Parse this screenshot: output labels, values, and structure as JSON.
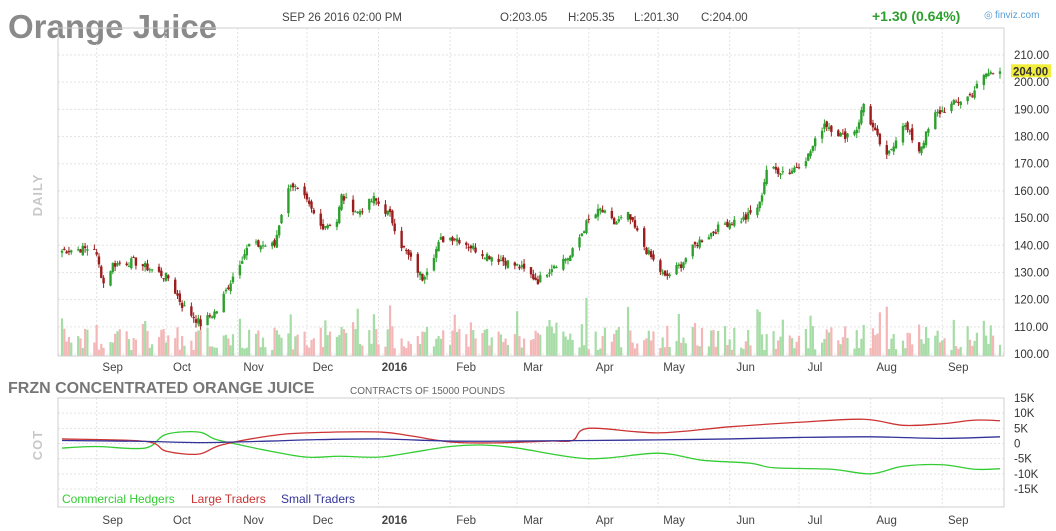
{
  "header": {
    "title": "Orange Juice",
    "datetime": "SEP 26 2016 02:00 PM",
    "open": "O:203.05",
    "high": "H:205.35",
    "low": "L:201.30",
    "close": "C:204.00",
    "change": "+1.30 (0.64%)",
    "brand": "finviz.com",
    "last_price_label": "204.00"
  },
  "colors": {
    "up": "#2ca02c",
    "down": "#9b1d1d",
    "volume_up": "#a6dca6",
    "volume_down": "#f4b6b6",
    "last_price_tag": "#f2ee3a",
    "commercial": "#33cc33",
    "large": "#cc3333",
    "small": "#333399"
  },
  "price_panel": {
    "side_label": "DAILY",
    "y_ticks": [
      "210.00",
      "200.00",
      "190.00",
      "180.00",
      "170.00",
      "160.00",
      "150.00",
      "140.00",
      "130.00",
      "120.00",
      "110.00",
      "100.00"
    ]
  },
  "cot_panel": {
    "title": "FRZN CONCENTRATED ORANGE JUICE",
    "subtitle": "CONTRACTS OF 15000 POUNDS",
    "side_label": "COT",
    "y_ticks": [
      "15K",
      "10K",
      "5K",
      "0",
      "-5K",
      "-10K",
      "-15K"
    ],
    "legend": [
      {
        "label": "Commercial Hedgers",
        "color": "#33cc33"
      },
      {
        "label": "Large Traders",
        "color": "#cc3333"
      },
      {
        "label": "Small Traders",
        "color": "#333399"
      }
    ]
  },
  "x_axis": {
    "labels": [
      {
        "text": "Sep",
        "bold": false
      },
      {
        "text": "Oct",
        "bold": false
      },
      {
        "text": "Nov",
        "bold": false
      },
      {
        "text": "Dec",
        "bold": false
      },
      {
        "text": "2016",
        "bold": true
      },
      {
        "text": "Feb",
        "bold": false
      },
      {
        "text": "Mar",
        "bold": false
      },
      {
        "text": "Apr",
        "bold": false
      },
      {
        "text": "May",
        "bold": false
      },
      {
        "text": "Jun",
        "bold": false
      },
      {
        "text": "Jul",
        "bold": false
      },
      {
        "text": "Aug",
        "bold": false
      },
      {
        "text": "Sep",
        "bold": false
      }
    ]
  },
  "chart_data": [
    {
      "type": "candlestick",
      "title": "Orange Juice",
      "period": "daily",
      "x_start": "2015-08-17",
      "x_end": "2016-09-26",
      "ylim": [
        100,
        210
      ],
      "month_starts": [
        "2015-09-01",
        "2015-10-01",
        "2015-11-01",
        "2015-12-01",
        "2016-01-01",
        "2016-02-01",
        "2016-03-01",
        "2016-04-01",
        "2016-05-01",
        "2016-06-01",
        "2016-07-01",
        "2016-08-01",
        "2016-09-01"
      ],
      "close_path": [
        [
          "2015-08-17",
          138
        ],
        [
          "2015-08-31",
          139
        ],
        [
          "2015-09-04",
          126
        ],
        [
          "2015-09-08",
          133
        ],
        [
          "2015-09-17",
          134
        ],
        [
          "2015-09-25",
          131
        ],
        [
          "2015-10-02",
          128
        ],
        [
          "2015-10-08",
          118
        ],
        [
          "2015-10-16",
          111
        ],
        [
          "2015-10-23",
          116
        ],
        [
          "2015-10-28",
          125
        ],
        [
          "2015-11-02",
          134
        ],
        [
          "2015-11-06",
          140
        ],
        [
          "2015-11-17",
          140
        ],
        [
          "2015-11-20",
          152
        ],
        [
          "2015-11-24",
          163
        ],
        [
          "2015-11-30",
          157
        ],
        [
          "2015-12-07",
          147
        ],
        [
          "2015-12-14",
          149
        ],
        [
          "2015-12-16",
          158
        ],
        [
          "2015-12-23",
          152
        ],
        [
          "2015-12-30",
          157
        ],
        [
          "2016-01-06",
          151
        ],
        [
          "2016-01-11",
          140
        ],
        [
          "2016-01-20",
          128
        ],
        [
          "2016-01-28",
          142
        ],
        [
          "2016-02-03",
          143
        ],
        [
          "2016-02-15",
          137
        ],
        [
          "2016-02-22",
          135
        ],
        [
          "2016-03-02",
          132
        ],
        [
          "2016-03-10",
          127
        ],
        [
          "2016-03-17",
          133
        ],
        [
          "2016-03-24",
          136
        ],
        [
          "2016-03-31",
          148
        ],
        [
          "2016-04-06",
          153
        ],
        [
          "2016-04-12",
          148
        ],
        [
          "2016-04-18",
          151
        ],
        [
          "2016-04-26",
          138
        ],
        [
          "2016-05-04",
          128
        ],
        [
          "2016-05-11",
          133
        ],
        [
          "2016-05-18",
          141
        ],
        [
          "2016-05-30",
          148
        ],
        [
          "2016-06-08",
          150
        ],
        [
          "2016-06-14",
          155
        ],
        [
          "2016-06-17",
          168
        ],
        [
          "2016-06-27",
          167
        ],
        [
          "2016-07-05",
          173
        ],
        [
          "2016-07-12",
          185
        ],
        [
          "2016-07-20",
          180
        ],
        [
          "2016-07-26",
          183
        ],
        [
          "2016-07-29",
          192
        ],
        [
          "2016-08-02",
          183
        ],
        [
          "2016-08-08",
          172
        ],
        [
          "2016-08-15",
          185
        ],
        [
          "2016-08-22",
          175
        ],
        [
          "2016-08-29",
          188
        ],
        [
          "2016-09-06",
          192
        ],
        [
          "2016-09-13",
          195
        ],
        [
          "2016-09-20",
          203
        ],
        [
          "2016-09-26",
          204
        ]
      ],
      "last": {
        "open": 203.05,
        "high": 205.35,
        "low": 201.3,
        "close": 204.0
      }
    },
    {
      "type": "line",
      "title": "FRZN CONCENTRATED ORANGE JUICE",
      "subtitle": "CONTRACTS OF 15000 POUNDS",
      "ylim": [
        -15000,
        15000
      ],
      "y_ticks": [
        15000,
        10000,
        5000,
        0,
        -5000,
        -10000,
        -15000
      ],
      "series": [
        {
          "name": "Commercial Hedgers",
          "color": "#33cc33",
          "points": [
            [
              "2015-08-17",
              -1500
            ],
            [
              "2015-09-01",
              -1000
            ],
            [
              "2015-09-22",
              -1500
            ],
            [
              "2015-10-01",
              3000
            ],
            [
              "2015-10-15",
              3800
            ],
            [
              "2015-10-22",
              1500
            ],
            [
              "2015-11-01",
              -300
            ],
            [
              "2015-11-15",
              -2500
            ],
            [
              "2015-12-01",
              -4500
            ],
            [
              "2015-12-15",
              -4200
            ],
            [
              "2016-01-01",
              -4500
            ],
            [
              "2016-01-15",
              -3000
            ],
            [
              "2016-02-01",
              -1000
            ],
            [
              "2016-02-15",
              -500
            ],
            [
              "2016-03-01",
              -1500
            ],
            [
              "2016-04-01",
              -5000
            ],
            [
              "2016-05-01",
              -3200
            ],
            [
              "2016-05-20",
              -5500
            ],
            [
              "2016-06-10",
              -6500
            ],
            [
              "2016-06-20",
              -8000
            ],
            [
              "2016-07-15",
              -8500
            ],
            [
              "2016-08-01",
              -10000
            ],
            [
              "2016-08-15",
              -7500
            ],
            [
              "2016-09-01",
              -7000
            ],
            [
              "2016-09-15",
              -8500
            ],
            [
              "2016-09-26",
              -8300
            ]
          ]
        },
        {
          "name": "Large Traders",
          "color": "#cc3333",
          "points": [
            [
              "2015-08-17",
              1500
            ],
            [
              "2015-09-22",
              700
            ],
            [
              "2015-10-01",
              -2500
            ],
            [
              "2015-10-15",
              -3500
            ],
            [
              "2015-10-25",
              -500
            ],
            [
              "2015-11-15",
              2500
            ],
            [
              "2015-12-01",
              3500
            ],
            [
              "2016-01-01",
              3800
            ],
            [
              "2016-01-15",
              2500
            ],
            [
              "2016-02-01",
              500
            ],
            [
              "2016-02-20",
              200
            ],
            [
              "2016-03-15",
              800
            ],
            [
              "2016-03-25",
              1000
            ],
            [
              "2016-04-01",
              5000
            ],
            [
              "2016-05-01",
              3500
            ],
            [
              "2016-06-01",
              5500
            ],
            [
              "2016-07-01",
              7000
            ],
            [
              "2016-07-29",
              8000
            ],
            [
              "2016-08-15",
              6000
            ],
            [
              "2016-09-01",
              6500
            ],
            [
              "2016-09-15",
              7700
            ],
            [
              "2016-09-26",
              7500
            ]
          ]
        },
        {
          "name": "Small Traders",
          "color": "#333399",
          "points": [
            [
              "2015-08-17",
              1000
            ],
            [
              "2015-09-22",
              700
            ],
            [
              "2015-10-15",
              300
            ],
            [
              "2015-11-15",
              800
            ],
            [
              "2015-12-01",
              1200
            ],
            [
              "2016-01-01",
              1500
            ],
            [
              "2016-02-01",
              800
            ],
            [
              "2016-03-01",
              800
            ],
            [
              "2016-04-01",
              1000
            ],
            [
              "2016-05-01",
              1200
            ],
            [
              "2016-06-01",
              1500
            ],
            [
              "2016-07-01",
              2000
            ],
            [
              "2016-08-01",
              2200
            ],
            [
              "2016-09-01",
              1700
            ],
            [
              "2016-09-26",
              2200
            ]
          ]
        }
      ]
    }
  ]
}
